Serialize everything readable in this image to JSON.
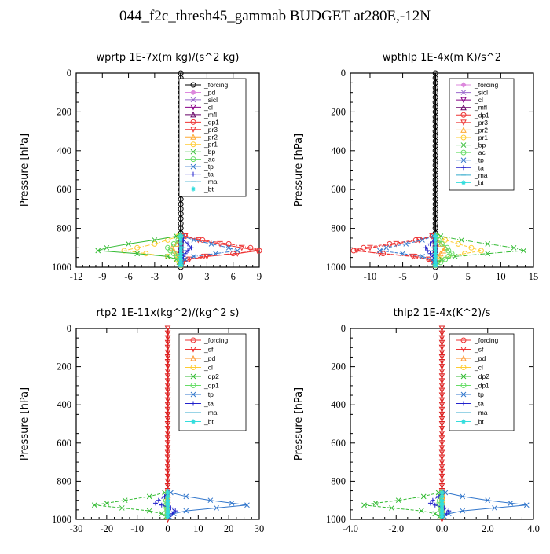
{
  "title": "044_f2c_thresh45_gammab  BUDGET at280E,-12N",
  "chart_data": [
    {
      "type": "line",
      "title": "wprtp   1E-7x(m kg)/(s^2 kg)",
      "ylabel": "Pressure [hPa]",
      "xlim": [
        -12,
        9
      ],
      "ylim": [
        1000,
        0
      ],
      "xticks": [
        "-12",
        "-9",
        "-6",
        "-3",
        "0",
        "3",
        "6",
        "9"
      ],
      "xtick_values": [
        -12,
        -9,
        -6,
        -3,
        0,
        3,
        6,
        9
      ],
      "yticks": [
        "0",
        "200",
        "400",
        "600",
        "800",
        "1000"
      ],
      "ytick_values": [
        0,
        200,
        400,
        600,
        800,
        1000
      ],
      "legend": "top-right",
      "pressure": [
        840,
        860,
        880,
        900,
        915,
        930,
        945,
        960,
        975,
        990
      ],
      "series": [
        {
          "name": "_forcing",
          "color": "#000000",
          "marker": "o",
          "values": [
            0,
            0,
            0,
            0,
            0,
            0,
            0,
            0,
            0,
            0
          ]
        },
        {
          "name": "_pd",
          "color": "#dd88dd",
          "marker": "d",
          "values": [
            0,
            0,
            0,
            0,
            0,
            0,
            0,
            0,
            0,
            0
          ]
        },
        {
          "name": "_sicl",
          "color": "#9966cc",
          "marker": "x",
          "values": [
            0,
            0,
            0,
            0,
            0,
            0,
            0,
            0,
            0,
            0
          ]
        },
        {
          "name": "_cl",
          "color": "#880088",
          "marker": "v",
          "values": [
            0,
            0,
            0,
            0,
            0,
            0,
            0,
            0,
            0,
            0
          ]
        },
        {
          "name": "_mfl",
          "color": "#660066",
          "marker": "^",
          "values": [
            0,
            0,
            0,
            0,
            0,
            0,
            0,
            0,
            0,
            0
          ]
        },
        {
          "name": "_dp1",
          "color": "#ee3333",
          "marker": "o",
          "values": [
            0.5,
            2.5,
            5.5,
            8,
            9,
            6,
            2.5,
            0.8,
            0.2,
            0
          ]
        },
        {
          "name": "_pr3",
          "color": "#ee3333",
          "marker": "v",
          "values": [
            0.5,
            2,
            4.5,
            7,
            8.8,
            6.5,
            3,
            1,
            0.3,
            0
          ]
        },
        {
          "name": "_pr2",
          "color": "#ffaa33",
          "marker": "^",
          "values": [
            0,
            -0.2,
            -0.5,
            -1,
            -0.8,
            -0.5,
            -0.3,
            -0.2,
            0,
            0
          ]
        },
        {
          "name": "_pr1",
          "color": "#ffcc33",
          "marker": "o",
          "values": [
            -0.3,
            -1.5,
            -3,
            -5,
            -6.5,
            -4,
            -1.5,
            -0.5,
            -0.2,
            0
          ]
        },
        {
          "name": "_bp",
          "color": "#33bb33",
          "marker": "x",
          "values": [
            -0.5,
            -3,
            -6,
            -8.5,
            -9.5,
            -5,
            -1.5,
            -0.5,
            -0.2,
            0
          ]
        },
        {
          "name": "_ac",
          "color": "#66dd66",
          "marker": "o",
          "values": [
            0,
            -0.3,
            -0.8,
            -1.5,
            -1.2,
            -0.8,
            -0.4,
            -0.2,
            0,
            0
          ]
        },
        {
          "name": "_tp",
          "color": "#3377cc",
          "marker": "x",
          "values": [
            0.2,
            1.5,
            3.5,
            5.5,
            6.5,
            4,
            1.5,
            0.5,
            0.1,
            0
          ]
        },
        {
          "name": "_ta",
          "color": "#2222cc",
          "marker": "+",
          "values": [
            0,
            0.3,
            0.8,
            1.2,
            0.8,
            0.5,
            0.3,
            0.1,
            0,
            0
          ]
        },
        {
          "name": "_ma",
          "color": "#33aacc",
          "marker": "-",
          "values": [
            0,
            0.1,
            0.2,
            0.3,
            0.2,
            0.1,
            0,
            0,
            0,
            0
          ]
        },
        {
          "name": "_bt",
          "color": "#33dddd",
          "marker": "*",
          "values": [
            0,
            0,
            0,
            0,
            0,
            0,
            0,
            0,
            0,
            0
          ]
        }
      ]
    },
    {
      "type": "line",
      "title": "wpthlp   1E-4x(m K)/s^2",
      "ylabel": "Pressure [hPa]",
      "xlim": [
        -13,
        15
      ],
      "ylim": [
        1000,
        0
      ],
      "xticks": [
        "-10",
        "-5",
        "0",
        "5",
        "10",
        "15"
      ],
      "xtick_values": [
        -10,
        -5,
        0,
        5,
        10,
        15
      ],
      "yticks": [
        "0",
        "200",
        "400",
        "600",
        "800",
        "1000"
      ],
      "ytick_values": [
        0,
        200,
        400,
        600,
        800,
        1000
      ],
      "legend": "top-right",
      "pressure": [
        840,
        860,
        880,
        900,
        915,
        930,
        945,
        960,
        975,
        990
      ],
      "series": [
        {
          "name": "_forcing",
          "color": "#dd88dd",
          "marker": "d",
          "values": [
            0,
            0,
            0,
            0,
            0,
            0,
            0,
            0,
            0,
            0
          ]
        },
        {
          "name": "_sicl",
          "color": "#9966cc",
          "marker": "x",
          "values": [
            0,
            0,
            0,
            0,
            0,
            0,
            0,
            0,
            0,
            0
          ]
        },
        {
          "name": "_cl",
          "color": "#880088",
          "marker": "v",
          "values": [
            0,
            0,
            0,
            0,
            0,
            0,
            0,
            0,
            0,
            0
          ]
        },
        {
          "name": "_mfl",
          "color": "#660066",
          "marker": "^",
          "values": [
            0,
            0,
            0,
            0,
            0,
            0,
            0,
            0,
            0,
            0
          ]
        },
        {
          "name": "_dp1",
          "color": "#ee3333",
          "marker": "o",
          "values": [
            -0.5,
            -3,
            -7,
            -11,
            -12.5,
            -8,
            -3,
            -1,
            -0.3,
            0
          ]
        },
        {
          "name": "_pr3",
          "color": "#ee3333",
          "marker": "v",
          "values": [
            -0.5,
            -2.5,
            -6,
            -10,
            -12,
            -8.5,
            -3.5,
            -1,
            -0.3,
            0
          ]
        },
        {
          "name": "_pr2",
          "color": "#ffaa33",
          "marker": "^",
          "values": [
            0,
            0.3,
            0.8,
            1.5,
            1.2,
            0.8,
            0.4,
            0.2,
            0,
            0
          ]
        },
        {
          "name": "_pr1",
          "color": "#ffcc33",
          "marker": "o",
          "values": [
            0.3,
            1.5,
            3.5,
            5.5,
            7,
            4.5,
            2,
            0.8,
            0.3,
            0
          ]
        },
        {
          "name": "_bp",
          "color": "#33bb33",
          "marker": "x",
          "values": [
            0.8,
            4,
            8,
            12,
            13.5,
            8,
            3,
            1,
            0.3,
            0
          ]
        },
        {
          "name": "_ac",
          "color": "#66dd66",
          "marker": "o",
          "values": [
            0,
            0.5,
            1,
            1.8,
            2,
            2.5,
            2,
            1.5,
            0.8,
            0
          ]
        },
        {
          "name": "_tp",
          "color": "#3377cc",
          "marker": "x",
          "values": [
            -0.3,
            -2,
            -4.5,
            -7.5,
            -8.5,
            -5,
            -2,
            -0.5,
            -0.2,
            0
          ]
        },
        {
          "name": "_ta",
          "color": "#2222cc",
          "marker": "+",
          "values": [
            0,
            -0.3,
            -0.8,
            -1.5,
            -1.2,
            -0.8,
            -0.3,
            -0.1,
            0,
            0
          ]
        },
        {
          "name": "_ma",
          "color": "#33aacc",
          "marker": "-",
          "values": [
            0,
            -0.1,
            -0.2,
            -0.3,
            -0.2,
            -0.1,
            0,
            0,
            0,
            0
          ]
        },
        {
          "name": "_bt",
          "color": "#33dddd",
          "marker": "*",
          "values": [
            0,
            0,
            0,
            0,
            0,
            0,
            0,
            0,
            0,
            0
          ]
        }
      ]
    },
    {
      "type": "line",
      "title": "rtp2   1E-11x(kg^2)/(kg^2 s)",
      "ylabel": "Pressure [hPa]",
      "xlim": [
        -30,
        30
      ],
      "ylim": [
        1000,
        0
      ],
      "xticks": [
        "-30",
        "-20",
        "-10",
        "0",
        "10",
        "20",
        "30"
      ],
      "xtick_values": [
        -30,
        -20,
        -10,
        0,
        10,
        20,
        30
      ],
      "yticks": [
        "0",
        "200",
        "400",
        "600",
        "800",
        "1000"
      ],
      "ytick_values": [
        0,
        200,
        400,
        600,
        800,
        1000
      ],
      "legend": "top-right",
      "pressure": [
        860,
        880,
        900,
        915,
        925,
        940,
        955,
        970,
        985
      ],
      "series": [
        {
          "name": "_forcing",
          "color": "#ee3333",
          "marker": "o",
          "values": [
            0,
            0,
            0,
            0,
            0,
            0,
            0,
            0,
            0
          ]
        },
        {
          "name": "_sf",
          "color": "#ee3333",
          "marker": "v",
          "values": [
            0,
            0,
            0,
            0,
            0,
            0,
            0,
            0,
            0
          ]
        },
        {
          "name": "_pd",
          "color": "#ff9933",
          "marker": "^",
          "values": [
            0,
            0,
            0,
            0,
            0,
            0,
            0,
            0,
            0
          ]
        },
        {
          "name": "_cl",
          "color": "#ffcc33",
          "marker": "o",
          "values": [
            0,
            0,
            0,
            0,
            0,
            0,
            0,
            0,
            0
          ]
        },
        {
          "name": "_dp2",
          "color": "#33bb33",
          "marker": "x",
          "values": [
            -1,
            -6,
            -14,
            -20,
            -24,
            -15,
            -6,
            -2,
            -0.5
          ]
        },
        {
          "name": "_dp1",
          "color": "#66dd66",
          "marker": "o",
          "values": [
            0,
            -0.3,
            -0.5,
            -0.8,
            -0.6,
            -0.4,
            -0.2,
            -0.1,
            0
          ]
        },
        {
          "name": "_tp",
          "color": "#3377cc",
          "marker": "x",
          "values": [
            1,
            6,
            14,
            21,
            26,
            16,
            6,
            2,
            0.5
          ]
        },
        {
          "name": "_ta",
          "color": "#2222cc",
          "marker": "+",
          "values": [
            0,
            -1,
            -3,
            -4,
            -2,
            1,
            2.5,
            1.5,
            0.5
          ]
        },
        {
          "name": "_ma",
          "color": "#33aacc",
          "marker": "-",
          "values": [
            0,
            0,
            0,
            0,
            0,
            0,
            0,
            0,
            0
          ]
        },
        {
          "name": "_bt",
          "color": "#33dddd",
          "marker": "*",
          "values": [
            0,
            0,
            0,
            0,
            0,
            0,
            0,
            0,
            0
          ]
        }
      ]
    },
    {
      "type": "line",
      "title": "thlp2   1E-4x(K^2)/s",
      "ylabel": "Pressure [hPa]",
      "xlim": [
        -4,
        4
      ],
      "ylim": [
        1000,
        0
      ],
      "xticks": [
        "-4.0",
        "-2.0",
        "0.0",
        "2.0",
        "4.0"
      ],
      "xtick_values": [
        -4,
        -2,
        0,
        2,
        4
      ],
      "yticks": [
        "0",
        "200",
        "400",
        "600",
        "800",
        "1000"
      ],
      "ytick_values": [
        0,
        200,
        400,
        600,
        800,
        1000
      ],
      "legend": "top-right",
      "pressure": [
        860,
        880,
        900,
        915,
        925,
        940,
        955,
        970,
        985
      ],
      "series": [
        {
          "name": "_forcing",
          "color": "#ee3333",
          "marker": "o",
          "values": [
            0,
            0,
            0,
            0,
            0,
            0,
            0,
            0,
            0
          ]
        },
        {
          "name": "_sf",
          "color": "#ee3333",
          "marker": "v",
          "values": [
            0,
            0,
            0,
            0,
            0,
            0,
            0,
            0,
            0
          ]
        },
        {
          "name": "_pd",
          "color": "#ff9933",
          "marker": "^",
          "values": [
            0,
            0,
            0,
            0,
            0,
            0,
            0,
            0,
            0
          ]
        },
        {
          "name": "_cl",
          "color": "#ffcc33",
          "marker": "o",
          "values": [
            0,
            0,
            0,
            0,
            0,
            0,
            0,
            0,
            0
          ]
        },
        {
          "name": "_dp2",
          "color": "#33bb33",
          "marker": "x",
          "values": [
            -0.15,
            -0.8,
            -1.9,
            -2.9,
            -3.4,
            -2.2,
            -0.9,
            -0.3,
            -0.1
          ]
        },
        {
          "name": "_dp1",
          "color": "#66dd66",
          "marker": "o",
          "values": [
            0,
            -0.05,
            -0.1,
            -0.12,
            -0.1,
            -0.06,
            -0.03,
            0,
            0
          ]
        },
        {
          "name": "_tp",
          "color": "#3377cc",
          "marker": "x",
          "values": [
            0.15,
            0.9,
            2,
            3,
            3.7,
            2.3,
            0.9,
            0.3,
            0.1
          ]
        },
        {
          "name": "_ta",
          "color": "#2222cc",
          "marker": "+",
          "values": [
            0,
            -0.15,
            -0.4,
            -0.5,
            -0.3,
            0.1,
            0.3,
            0.2,
            0.05
          ]
        },
        {
          "name": "_ma",
          "color": "#33aacc",
          "marker": "-",
          "values": [
            0,
            0,
            0,
            0,
            0,
            0,
            0,
            0,
            0
          ]
        },
        {
          "name": "_bt",
          "color": "#33dddd",
          "marker": "*",
          "values": [
            0,
            0,
            0,
            0,
            0,
            0,
            0,
            0,
            0
          ]
        }
      ]
    }
  ]
}
